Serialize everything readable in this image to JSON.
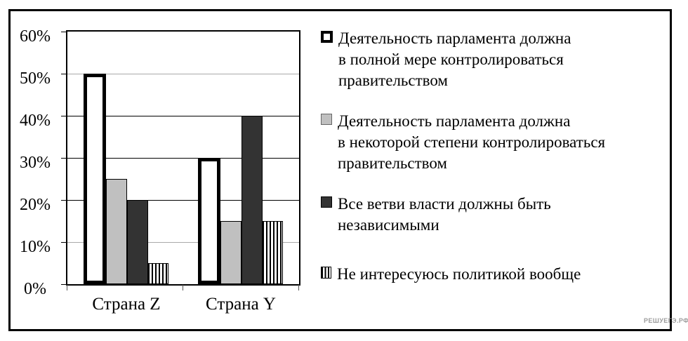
{
  "watermark": "РЕШУЕГЭ.РФ",
  "colors": {
    "bar_white": "#ffffff",
    "bar_light_gray": "#c0c0c0",
    "bar_dark_gray": "#333333",
    "grid_dark": "#000000",
    "grid_light": "#aaaaaa",
    "frame_border": "#000000",
    "watermark_gray": "#9c9c9c"
  },
  "chart_data": {
    "type": "bar",
    "title": "",
    "xlabel": "",
    "ylabel": "",
    "categories": [
      "Страна Z",
      "Страна Y"
    ],
    "series": [
      {
        "name": "Деятельность парламента должна в полной мере контролироваться правительством",
        "legend_lines": [
          "Деятельность парламента должна",
          "в полной мере контролироваться",
          "правительством"
        ],
        "values": [
          50,
          30
        ],
        "style": "white-outline"
      },
      {
        "name": "Деятельность парламента должна в некоторой степени контролироваться правительством",
        "legend_lines": [
          "Деятельность парламента должна",
          "в некоторой степени контролироваться",
          "правительством"
        ],
        "values": [
          25,
          15
        ],
        "style": "light-gray"
      },
      {
        "name": "Все ветви власти должны быть независимыми",
        "legend_lines": [
          "Все ветви власти должны быть",
          "независимыми"
        ],
        "values": [
          20,
          40
        ],
        "style": "dark-gray"
      },
      {
        "name": "Не интересуюсь политикой вообще",
        "legend_lines": [
          "Не интересуюсь политикой вообще"
        ],
        "values": [
          5,
          15
        ],
        "style": "vertical-stripes"
      }
    ],
    "ylim": [
      0,
      60
    ],
    "ytick_step": 10,
    "ytick_labels": [
      "0%",
      "10%",
      "20%",
      "30%",
      "40%",
      "50%",
      "60%"
    ],
    "grid": true,
    "gridline_shades": {
      "light": [
        10,
        50
      ],
      "dark": [
        20,
        30,
        40
      ]
    },
    "legend_position": "right"
  }
}
